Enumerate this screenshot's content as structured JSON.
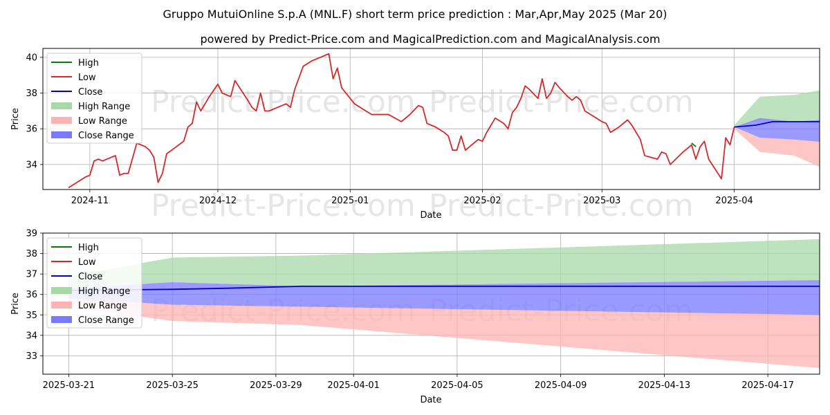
{
  "title": "Gruppo MutuiOnline S.p.A (MNL.F) short term price prediction : Mar,Apr,May 2025 (Mar 20)",
  "subtitle": "powered by Predict-Price.com and MagicalPrediction.com and MagicalAnalysis.com",
  "watermark": "Predict-Price.com",
  "colors": {
    "high": "#008000",
    "low": "#d62728",
    "close": "#0000cc",
    "high_range": "#a8d8a8",
    "low_range": "#ffb3b3",
    "close_range": "#7a7aff"
  },
  "legend": [
    "High",
    "Low",
    "Close",
    "High Range",
    "Low Range",
    "Close Range"
  ],
  "chart_data": [
    {
      "type": "line",
      "xlabel": "Date",
      "ylabel": "Price",
      "xlim": [
        "2024-10-21",
        "2025-04-21"
      ],
      "ylim": [
        32.6,
        40.5
      ],
      "xticks": [
        {
          "date": "2024-11-01",
          "label": "2024-11"
        },
        {
          "date": "2024-12-01",
          "label": "2024-12"
        },
        {
          "date": "2025-01-01",
          "label": "2025-01"
        },
        {
          "date": "2025-02-01",
          "label": "2025-02"
        },
        {
          "date": "2025-03-01",
          "label": "2025-03"
        },
        {
          "date": "2025-04-01",
          "label": "2025-04"
        }
      ],
      "yticks": [
        34,
        36,
        38,
        40
      ],
      "grid": true,
      "legend_position": "top-left",
      "series": [
        {
          "name": "Low",
          "points": [
            [
              "2024-10-27",
              32.7
            ],
            [
              "2024-10-29",
              33.0
            ],
            [
              "2024-10-31",
              33.3
            ],
            [
              "2024-11-01",
              33.4
            ],
            [
              "2024-11-02",
              34.2
            ],
            [
              "2024-11-03",
              34.3
            ],
            [
              "2024-11-04",
              34.2
            ],
            [
              "2024-11-07",
              34.5
            ],
            [
              "2024-11-08",
              33.4
            ],
            [
              "2024-11-09",
              33.5
            ],
            [
              "2024-11-10",
              33.5
            ],
            [
              "2024-11-12",
              35.2
            ],
            [
              "2024-11-14",
              35.0
            ],
            [
              "2024-11-15",
              34.8
            ],
            [
              "2024-11-16",
              34.4
            ],
            [
              "2024-11-17",
              33.0
            ],
            [
              "2024-11-18",
              33.5
            ],
            [
              "2024-11-19",
              34.6
            ],
            [
              "2024-11-23",
              35.3
            ],
            [
              "2024-11-24",
              36.1
            ],
            [
              "2024-11-25",
              36.3
            ],
            [
              "2024-11-26",
              37.5
            ],
            [
              "2024-11-27",
              37.0
            ],
            [
              "2024-11-29",
              37.8
            ],
            [
              "2024-12-01",
              38.5
            ],
            [
              "2024-12-02",
              38.0
            ],
            [
              "2024-12-03",
              37.9
            ],
            [
              "2024-12-04",
              37.8
            ],
            [
              "2024-12-05",
              38.7
            ],
            [
              "2024-12-08",
              37.6
            ],
            [
              "2024-12-09",
              37.2
            ],
            [
              "2024-12-10",
              37.0
            ],
            [
              "2024-12-11",
              38.0
            ],
            [
              "2024-12-12",
              37.0
            ],
            [
              "2024-12-13",
              37.0
            ],
            [
              "2024-12-15",
              37.2
            ],
            [
              "2024-12-17",
              37.4
            ],
            [
              "2024-12-18",
              37.2
            ],
            [
              "2024-12-19",
              38.2
            ],
            [
              "2024-12-21",
              39.5
            ],
            [
              "2024-12-23",
              39.8
            ],
            [
              "2024-12-25",
              40.0
            ],
            [
              "2024-12-27",
              40.2
            ],
            [
              "2024-12-28",
              38.8
            ],
            [
              "2024-12-29",
              39.4
            ],
            [
              "2024-12-30",
              38.3
            ],
            [
              "2024-12-31",
              38.0
            ],
            [
              "2025-01-02",
              37.4
            ],
            [
              "2025-01-04",
              37.1
            ],
            [
              "2025-01-06",
              36.8
            ],
            [
              "2025-01-10",
              36.8
            ],
            [
              "2025-01-13",
              36.4
            ],
            [
              "2025-01-15",
              36.8
            ],
            [
              "2025-01-17",
              37.3
            ],
            [
              "2025-01-18",
              37.2
            ],
            [
              "2025-01-19",
              36.3
            ],
            [
              "2025-01-21",
              36.1
            ],
            [
              "2025-01-23",
              35.8
            ],
            [
              "2025-01-24",
              35.6
            ],
            [
              "2025-01-25",
              34.8
            ],
            [
              "2025-01-26",
              34.8
            ],
            [
              "2025-01-27",
              35.6
            ],
            [
              "2025-01-28",
              34.8
            ],
            [
              "2025-01-30",
              35.2
            ],
            [
              "2025-01-31",
              35.4
            ],
            [
              "2025-02-01",
              35.3
            ],
            [
              "2025-02-02",
              35.8
            ],
            [
              "2025-02-04",
              36.6
            ],
            [
              "2025-02-06",
              36.3
            ],
            [
              "2025-02-07",
              36.0
            ],
            [
              "2025-02-08",
              36.9
            ],
            [
              "2025-02-09",
              37.2
            ],
            [
              "2025-02-10",
              37.7
            ],
            [
              "2025-02-11",
              38.4
            ],
            [
              "2025-02-12",
              38.2
            ],
            [
              "2025-02-14",
              37.7
            ],
            [
              "2025-02-15",
              38.8
            ],
            [
              "2025-02-16",
              37.7
            ],
            [
              "2025-02-17",
              38.0
            ],
            [
              "2025-02-18",
              38.6
            ],
            [
              "2025-02-19",
              38.3
            ],
            [
              "2025-02-21",
              37.8
            ],
            [
              "2025-02-22",
              37.6
            ],
            [
              "2025-02-23",
              37.8
            ],
            [
              "2025-02-24",
              37.6
            ],
            [
              "2025-02-25",
              37.0
            ],
            [
              "2025-02-27",
              36.7
            ],
            [
              "2025-03-01",
              36.4
            ],
            [
              "2025-03-02",
              36.3
            ],
            [
              "2025-03-03",
              35.8
            ],
            [
              "2025-03-05",
              36.1
            ],
            [
              "2025-03-07",
              36.5
            ],
            [
              "2025-03-08",
              36.2
            ],
            [
              "2025-03-09",
              35.8
            ],
            [
              "2025-03-10",
              35.4
            ],
            [
              "2025-03-11",
              34.5
            ],
            [
              "2025-03-14",
              34.3
            ],
            [
              "2025-03-15",
              34.7
            ],
            [
              "2025-03-16",
              34.6
            ],
            [
              "2025-03-17",
              34.0
            ],
            [
              "2025-03-20",
              34.7
            ],
            [
              "2025-03-22",
              35.1
            ],
            [
              "2025-03-23",
              34.3
            ],
            [
              "2025-03-24",
              35.0
            ],
            [
              "2025-03-25",
              35.3
            ],
            [
              "2025-03-26",
              34.3
            ],
            [
              "2025-03-29",
              33.2
            ],
            [
              "2025-03-30",
              35.5
            ],
            [
              "2025-03-31",
              35.1
            ],
            [
              "2025-04-01",
              36.1
            ]
          ]
        },
        {
          "name": "High",
          "points": [
            [
              "2025-03-22",
              35.2
            ],
            [
              "2025-03-23",
              35.0
            ]
          ]
        },
        {
          "name": "Close",
          "points": [
            [
              "2025-04-01",
              36.1
            ],
            [
              "2025-04-06",
              36.2
            ],
            [
              "2025-04-10",
              36.4
            ],
            [
              "2025-04-16",
              36.4
            ],
            [
              "2025-04-25",
              36.4
            ],
            [
              "2025-05-04",
              36.4
            ]
          ]
        }
      ],
      "ranges": {
        "dates": [
          "2025-04-01",
          "2025-04-07",
          "2025-04-15",
          "2025-05-04"
        ],
        "high_range": {
          "upper": [
            36.2,
            37.8,
            37.9,
            38.7
          ],
          "lower": [
            36.1,
            36.5,
            36.4,
            36.7
          ]
        },
        "close_range": {
          "upper": [
            36.1,
            36.6,
            36.4,
            36.7
          ],
          "lower": [
            36.1,
            35.5,
            35.4,
            35.0
          ]
        },
        "low_range": {
          "upper": [
            36.1,
            35.5,
            35.4,
            35.0
          ],
          "lower": [
            36.0,
            34.7,
            34.5,
            32.5
          ]
        }
      }
    },
    {
      "type": "line",
      "xlabel": "Date",
      "ylabel": "Price",
      "xlim": [
        "2025-03-20",
        "2025-04-19"
      ],
      "ylim": [
        32.1,
        39.0
      ],
      "xticks": [
        {
          "date": "2025-03-21",
          "label": "2025-03-21"
        },
        {
          "date": "2025-03-25",
          "label": "2025-03-25"
        },
        {
          "date": "2025-03-29",
          "label": "2025-03-29"
        },
        {
          "date": "2025-04-01",
          "label": "2025-04-01"
        },
        {
          "date": "2025-04-05",
          "label": "2025-04-05"
        },
        {
          "date": "2025-04-09",
          "label": "2025-04-09"
        },
        {
          "date": "2025-04-13",
          "label": "2025-04-13"
        },
        {
          "date": "2025-04-17",
          "label": "2025-04-17"
        }
      ],
      "yticks": [
        33,
        34,
        35,
        36,
        37,
        38,
        39
      ],
      "grid": true,
      "legend_position": "top-left",
      "series": [
        {
          "name": "High",
          "points": []
        },
        {
          "name": "Low",
          "points": []
        },
        {
          "name": "Close",
          "points": [
            [
              "2025-03-21",
              36.2
            ],
            [
              "2025-03-25",
              36.25
            ],
            [
              "2025-03-27",
              36.3
            ],
            [
              "2025-03-30",
              36.4
            ],
            [
              "2025-04-05",
              36.4
            ],
            [
              "2025-04-19",
              36.4
            ]
          ]
        }
      ],
      "ranges": {
        "dates": [
          "2025-03-21",
          "2025-03-25",
          "2025-03-30",
          "2025-04-19"
        ],
        "high_range": {
          "upper": [
            36.9,
            37.8,
            37.9,
            38.7
          ],
          "lower": [
            36.3,
            36.6,
            36.4,
            36.7
          ]
        },
        "close_range": {
          "upper": [
            36.3,
            36.6,
            36.4,
            36.7
          ],
          "lower": [
            35.8,
            35.5,
            35.4,
            35.0
          ]
        },
        "low_range": {
          "upper": [
            35.8,
            35.5,
            35.4,
            35.0
          ],
          "lower": [
            35.4,
            34.7,
            34.5,
            32.4
          ]
        }
      }
    }
  ]
}
